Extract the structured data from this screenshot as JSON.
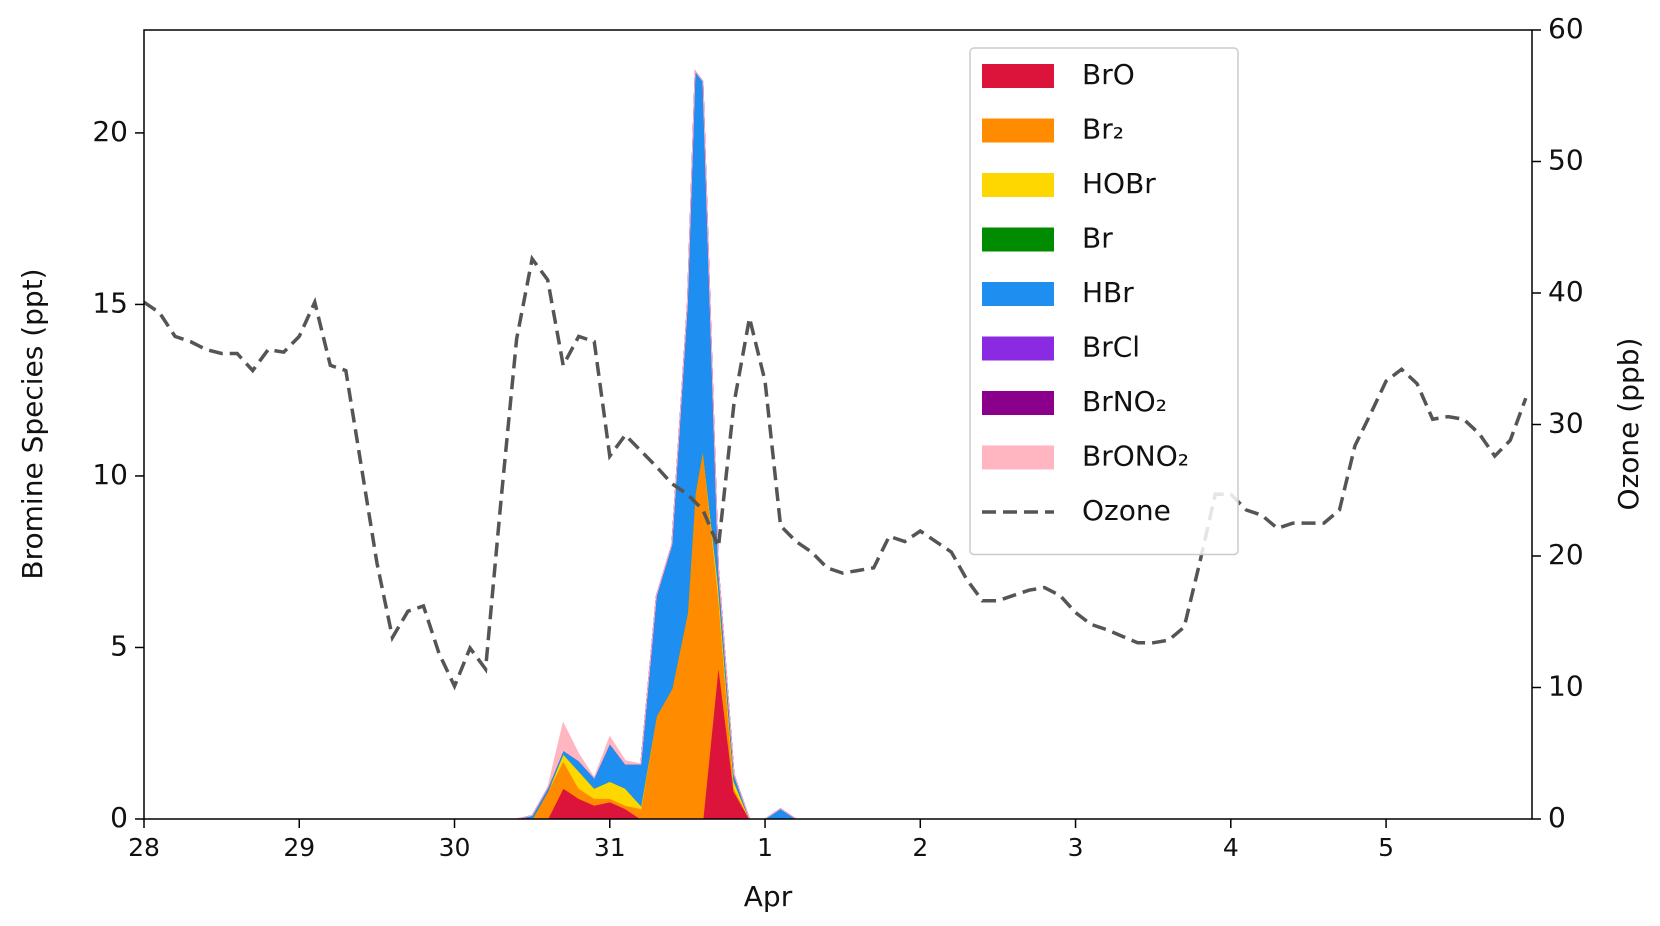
{
  "chart_data": {
    "type": "stacked_area",
    "xlabel": "Apr",
    "ylabel": "Bromine Species (ppt)",
    "y2label": "Ozone (ppb)",
    "xlim": [
      0,
      8.94
    ],
    "ylim": [
      0,
      23
    ],
    "y2lim": [
      0,
      60
    ],
    "xticks": [
      {
        "value": 0,
        "label": "28"
      },
      {
        "value": 1,
        "label": "29"
      },
      {
        "value": 2,
        "label": "30"
      },
      {
        "value": 3,
        "label": "31"
      },
      {
        "value": 4,
        "label": "1"
      },
      {
        "value": 5,
        "label": "2"
      },
      {
        "value": 6,
        "label": "3"
      },
      {
        "value": 7,
        "label": "4"
      },
      {
        "value": 8,
        "label": "5"
      }
    ],
    "yticks": [
      0,
      5,
      10,
      15,
      20
    ],
    "y2ticks": [
      0,
      10,
      20,
      30,
      40,
      50,
      60
    ],
    "legend": "upper right",
    "x": [
      0,
      2.4,
      2.5,
      2.6,
      2.7,
      2.8,
      2.9,
      3.0,
      3.1,
      3.2,
      3.3,
      3.4,
      3.5,
      3.55,
      3.6,
      3.7,
      3.8,
      3.9,
      4.0,
      4.1,
      4.2,
      8.94
    ],
    "series": [
      {
        "name": "BrO",
        "color": "#dc143c",
        "values": [
          0,
          0,
          0,
          0,
          0.9,
          0.6,
          0.4,
          0.5,
          0.3,
          0,
          0,
          0,
          0,
          0,
          0,
          4.5,
          0.8,
          0,
          0,
          0,
          0,
          0
        ]
      },
      {
        "name": "Br₂",
        "color": "#ff8c00",
        "values": [
          0,
          0,
          0,
          0.8,
          0.8,
          0.3,
          0.2,
          0.1,
          0.1,
          0.3,
          3.0,
          3.8,
          6.0,
          9.5,
          10.8,
          2.0,
          0.1,
          0,
          0,
          0,
          0,
          0
        ]
      },
      {
        "name": "HOBr",
        "color": "#ffd700",
        "values": [
          0,
          0,
          0,
          0,
          0.2,
          0.5,
          0.3,
          0.5,
          0.5,
          0.1,
          0,
          0,
          0,
          0,
          0,
          0.3,
          0.2,
          0,
          0,
          0,
          0,
          0
        ]
      },
      {
        "name": "Br",
        "color": "#008b00",
        "values": [
          0,
          0,
          0,
          0,
          0,
          0,
          0,
          0,
          0,
          0,
          0,
          0,
          0,
          0,
          0,
          0,
          0,
          0,
          0,
          0,
          0,
          0
        ]
      },
      {
        "name": "HBr",
        "color": "#1e8ff0",
        "values": [
          0,
          0,
          0.1,
          0.1,
          0.1,
          0.3,
          0.3,
          1.1,
          0.7,
          1.2,
          3.5,
          4.2,
          9.0,
          12.3,
          10.7,
          0.5,
          0.2,
          0,
          0,
          0.3,
          0,
          0
        ]
      },
      {
        "name": "BrCl",
        "color": "#8a2be2",
        "values": [
          0,
          0,
          0,
          0,
          0,
          0,
          0,
          0,
          0,
          0,
          0,
          0,
          0,
          0,
          0,
          0,
          0,
          0,
          0,
          0,
          0,
          0
        ]
      },
      {
        "name": "BrNO₂",
        "color": "#8b008b",
        "values": [
          0,
          0,
          0,
          0,
          0,
          0,
          0,
          0,
          0,
          0,
          0,
          0,
          0,
          0,
          0,
          0,
          0,
          0,
          0,
          0,
          0,
          0
        ]
      },
      {
        "name": "BrONO₂",
        "color": "#ffb6c1",
        "values": [
          0,
          0,
          0,
          0,
          0.8,
          0.2,
          0,
          0.2,
          0.1,
          0,
          0,
          0,
          0,
          0,
          0,
          0,
          0,
          0,
          0,
          0,
          0,
          0
        ]
      },
      {
        "name": "Ozone",
        "type": "line",
        "axis": "y2",
        "color": "#555555",
        "linestyle": "dashed",
        "x": [
          0,
          0.1,
          0.2,
          0.3,
          0.4,
          0.5,
          0.6,
          0.7,
          0.8,
          0.9,
          1.0,
          1.1,
          1.2,
          1.3,
          1.4,
          1.5,
          1.6,
          1.7,
          1.8,
          1.9,
          2.0,
          2.1,
          2.2,
          2.3,
          2.4,
          2.5,
          2.6,
          2.7,
          2.8,
          2.9,
          3.0,
          3.1,
          3.2,
          3.3,
          3.4,
          3.5,
          3.6,
          3.7,
          3.8,
          3.9,
          4.0,
          4.1,
          4.2,
          4.3,
          4.4,
          4.5,
          4.6,
          4.7,
          4.8,
          4.9,
          5.0,
          5.1,
          5.2,
          5.3,
          5.4,
          5.5,
          5.6,
          5.7,
          5.8,
          5.9,
          6.0,
          6.1,
          6.2,
          6.3,
          6.4,
          6.5,
          6.6,
          6.7,
          6.8,
          6.9,
          7.0,
          7.1,
          7.2,
          7.3,
          7.4,
          7.5,
          7.6,
          7.7,
          7.8,
          7.9,
          8.0,
          8.1,
          8.2,
          8.3,
          8.4,
          8.5,
          8.6,
          8.7,
          8.8,
          8.9
        ],
        "values": [
          39.3,
          38.5,
          36.7,
          36.3,
          35.7,
          35.4,
          35.4,
          34.1,
          35.7,
          35.5,
          36.7,
          39.3,
          34.5,
          34.1,
          26.8,
          19.5,
          13.8,
          15.8,
          16.2,
          12.6,
          10.1,
          13.0,
          11.4,
          24.3,
          36.5,
          42.6,
          41.0,
          34.5,
          36.7,
          36.3,
          27.6,
          29.2,
          28.0,
          26.8,
          25.5,
          24.7,
          23.5,
          20.7,
          31.6,
          38.1,
          33.3,
          22.3,
          21.1,
          20.3,
          19.1,
          18.7,
          18.9,
          19.1,
          21.5,
          21.1,
          21.9,
          21.1,
          20.3,
          18.2,
          16.6,
          16.6,
          17.0,
          17.4,
          17.6,
          17.0,
          15.7,
          14.8,
          14.4,
          13.9,
          13.4,
          13.4,
          13.6,
          14.6,
          19.5,
          24.7,
          24.7,
          23.5,
          23.1,
          22.1,
          22.5,
          22.5,
          22.5,
          23.5,
          28.4,
          30.8,
          33.3,
          34.2,
          33.1,
          30.4,
          30.6,
          30.4,
          29.3,
          27.6,
          28.8,
          32.0
        ]
      }
    ]
  }
}
